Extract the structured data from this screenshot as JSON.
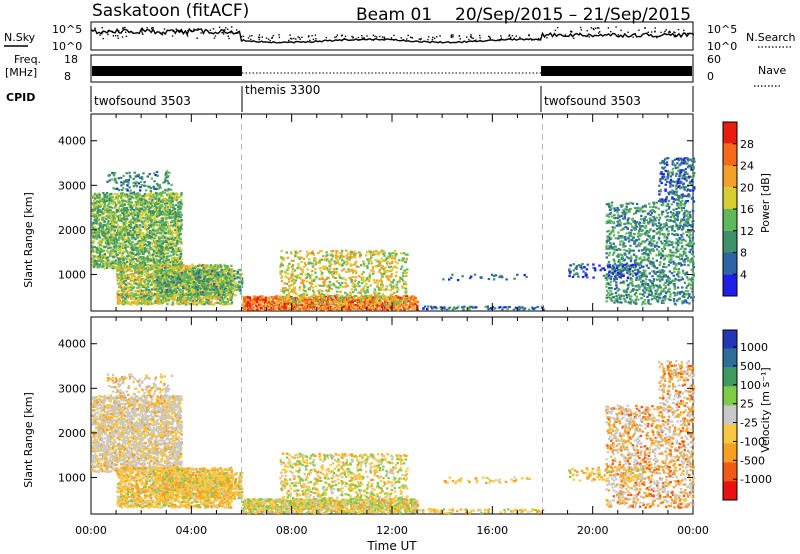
{
  "header": {
    "title": "Saskatoon (fitACF)",
    "beam": "Beam 01",
    "dates": "20/Sep/2015 – 21/Sep/2015"
  },
  "strips": {
    "nsky_label": "N.Sky",
    "nsky_ticks": [
      "10^5",
      "10^0"
    ],
    "nsearch_label": "N.Search",
    "nsearch_ticks": [
      "10^5",
      "10^0"
    ],
    "freq_label_top": "Freq.",
    "freq_label_unit": "[MHz]",
    "freq_ticks": [
      "18",
      "8"
    ],
    "nave_label": "Nave",
    "nave_ticks": [
      "60",
      "0"
    ],
    "cpid_label": "CPID"
  },
  "cpid_segments": [
    {
      "name": "twofsound 3503",
      "start": 0,
      "end": 6
    },
    {
      "name": "themis 3300",
      "start": 6,
      "end": 18
    },
    {
      "name": "twofsound 3503",
      "start": 18,
      "end": 24
    }
  ],
  "colors": {
    "power": [
      "#1f1fe6",
      "#2e64a6",
      "#3e9068",
      "#5fb85a",
      "#d7cc32",
      "#f2a22a",
      "#f56a1c",
      "#e81d12"
    ],
    "velocity": [
      "#e81010",
      "#f05a14",
      "#f5a020",
      "#f8c840",
      "#c8c8c8",
      "#7dcc46",
      "#3e9a5e",
      "#2c6e98",
      "#2436b8"
    ]
  },
  "chart_data": [
    {
      "type": "heatmap",
      "name_hint": "power",
      "ylabel": "Slant Range [km]",
      "xlim": [
        0,
        24
      ],
      "ylim": [
        180,
        4600
      ],
      "x_ticks": [
        "00:00",
        "04:00",
        "08:00",
        "12:00",
        "16:00",
        "20:00",
        "00:00"
      ],
      "y_ticks": [
        1000,
        2000,
        3000,
        4000
      ],
      "colorbar_label": "Power [dB]",
      "colorbar_ticks": [
        "4",
        "8",
        "12",
        "16",
        "20",
        "24",
        "28"
      ],
      "colorbar_range": [
        0,
        32
      ]
    },
    {
      "type": "heatmap",
      "name_hint": "velocity",
      "ylabel": "Slant Range [km]",
      "xlabel": "Time UT",
      "xlim": [
        0,
        24
      ],
      "ylim": [
        180,
        4600
      ],
      "x_ticks": [
        "00:00",
        "04:00",
        "08:00",
        "12:00",
        "16:00",
        "20:00",
        "00:00"
      ],
      "y_ticks": [
        1000,
        2000,
        3000,
        4000
      ],
      "colorbar_label": "Velocity [m s⁻¹]",
      "colorbar_ticks": [
        "1000",
        "500",
        "100",
        "25",
        "-25",
        "-100",
        "-500",
        "-1000"
      ]
    }
  ],
  "scatter_regions": [
    {
      "t0": 0.0,
      "t1": 3.6,
      "r0": 1100,
      "r1": 2800,
      "density": 0.55,
      "pw": 14
    },
    {
      "t0": 0.6,
      "t1": 3.2,
      "r0": 2800,
      "r1": 3300,
      "density": 0.15,
      "pw": 9
    },
    {
      "t0": 1.0,
      "t1": 5.6,
      "r0": 300,
      "r1": 1200,
      "density": 0.55,
      "pw": 17
    },
    {
      "t0": 2.5,
      "t1": 6.0,
      "r0": 500,
      "r1": 1100,
      "density": 0.45,
      "pw": 13
    },
    {
      "t0": 6.0,
      "t1": 13.0,
      "r0": 180,
      "r1": 480,
      "density": 0.7,
      "pw": 25
    },
    {
      "t0": 7.5,
      "t1": 12.6,
      "r0": 300,
      "r1": 1500,
      "density": 0.22,
      "pw": 18
    },
    {
      "t0": 13.0,
      "t1": 18.0,
      "r0": 180,
      "r1": 260,
      "density": 0.25,
      "pw": 8
    },
    {
      "t0": 14.0,
      "t1": 17.5,
      "r0": 850,
      "r1": 1000,
      "density": 0.15,
      "pw": 6
    },
    {
      "t0": 20.5,
      "t1": 24.0,
      "r0": 300,
      "r1": 2600,
      "density": 0.25,
      "pw": 10
    },
    {
      "t0": 22.6,
      "t1": 24.0,
      "r0": 2600,
      "r1": 3600,
      "density": 0.25,
      "pw": 7
    },
    {
      "t0": 19.0,
      "t1": 22.0,
      "r0": 900,
      "r1": 1200,
      "density": 0.18,
      "pw": 6
    }
  ]
}
